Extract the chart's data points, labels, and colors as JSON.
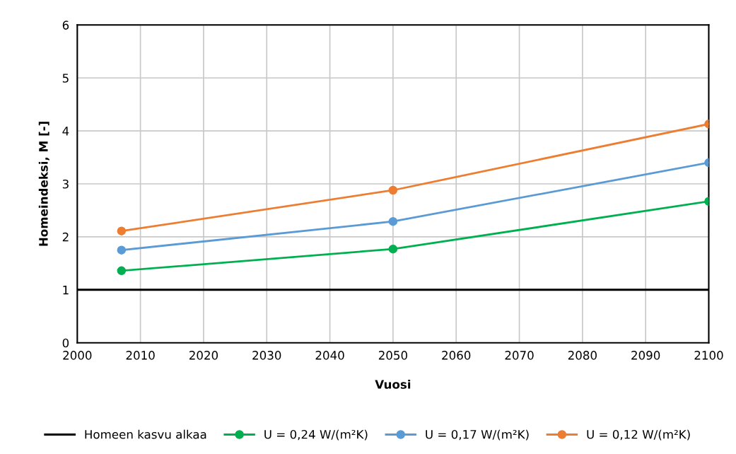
{
  "chart_data": {
    "type": "line",
    "xlabel": "Vuosi",
    "ylabel": "Homeindeksi, M [-]",
    "xlim": [
      2000,
      2100
    ],
    "xticks": [
      2000,
      2010,
      2020,
      2030,
      2040,
      2050,
      2060,
      2070,
      2080,
      2090,
      2100
    ],
    "ylim": [
      0,
      6
    ],
    "yticks": [
      0,
      1,
      2,
      3,
      4,
      5,
      6
    ],
    "grid": true,
    "legend": "bottom",
    "marker": "circle",
    "line_style": "solid",
    "series": [
      {
        "name": "Homeen kasvu alkaa",
        "color": "#000000",
        "marker": "none",
        "x": [
          2000,
          2100
        ],
        "values": [
          1,
          1
        ]
      },
      {
        "name": "U = 0,24 W/(m²K)",
        "color": "#00b050",
        "x": [
          2007,
          2050,
          2100
        ],
        "values": [
          1.36,
          1.77,
          2.67
        ]
      },
      {
        "name": "U = 0,17 W/(m²K)",
        "color": "#5b9bd5",
        "x": [
          2007,
          2050,
          2100
        ],
        "values": [
          1.75,
          2.29,
          3.4
        ]
      },
      {
        "name": "U = 0,12 W/(m²K)",
        "color": "#ed7d31",
        "x": [
          2007,
          2050,
          2100
        ],
        "values": [
          2.11,
          2.88,
          4.13
        ]
      }
    ]
  }
}
